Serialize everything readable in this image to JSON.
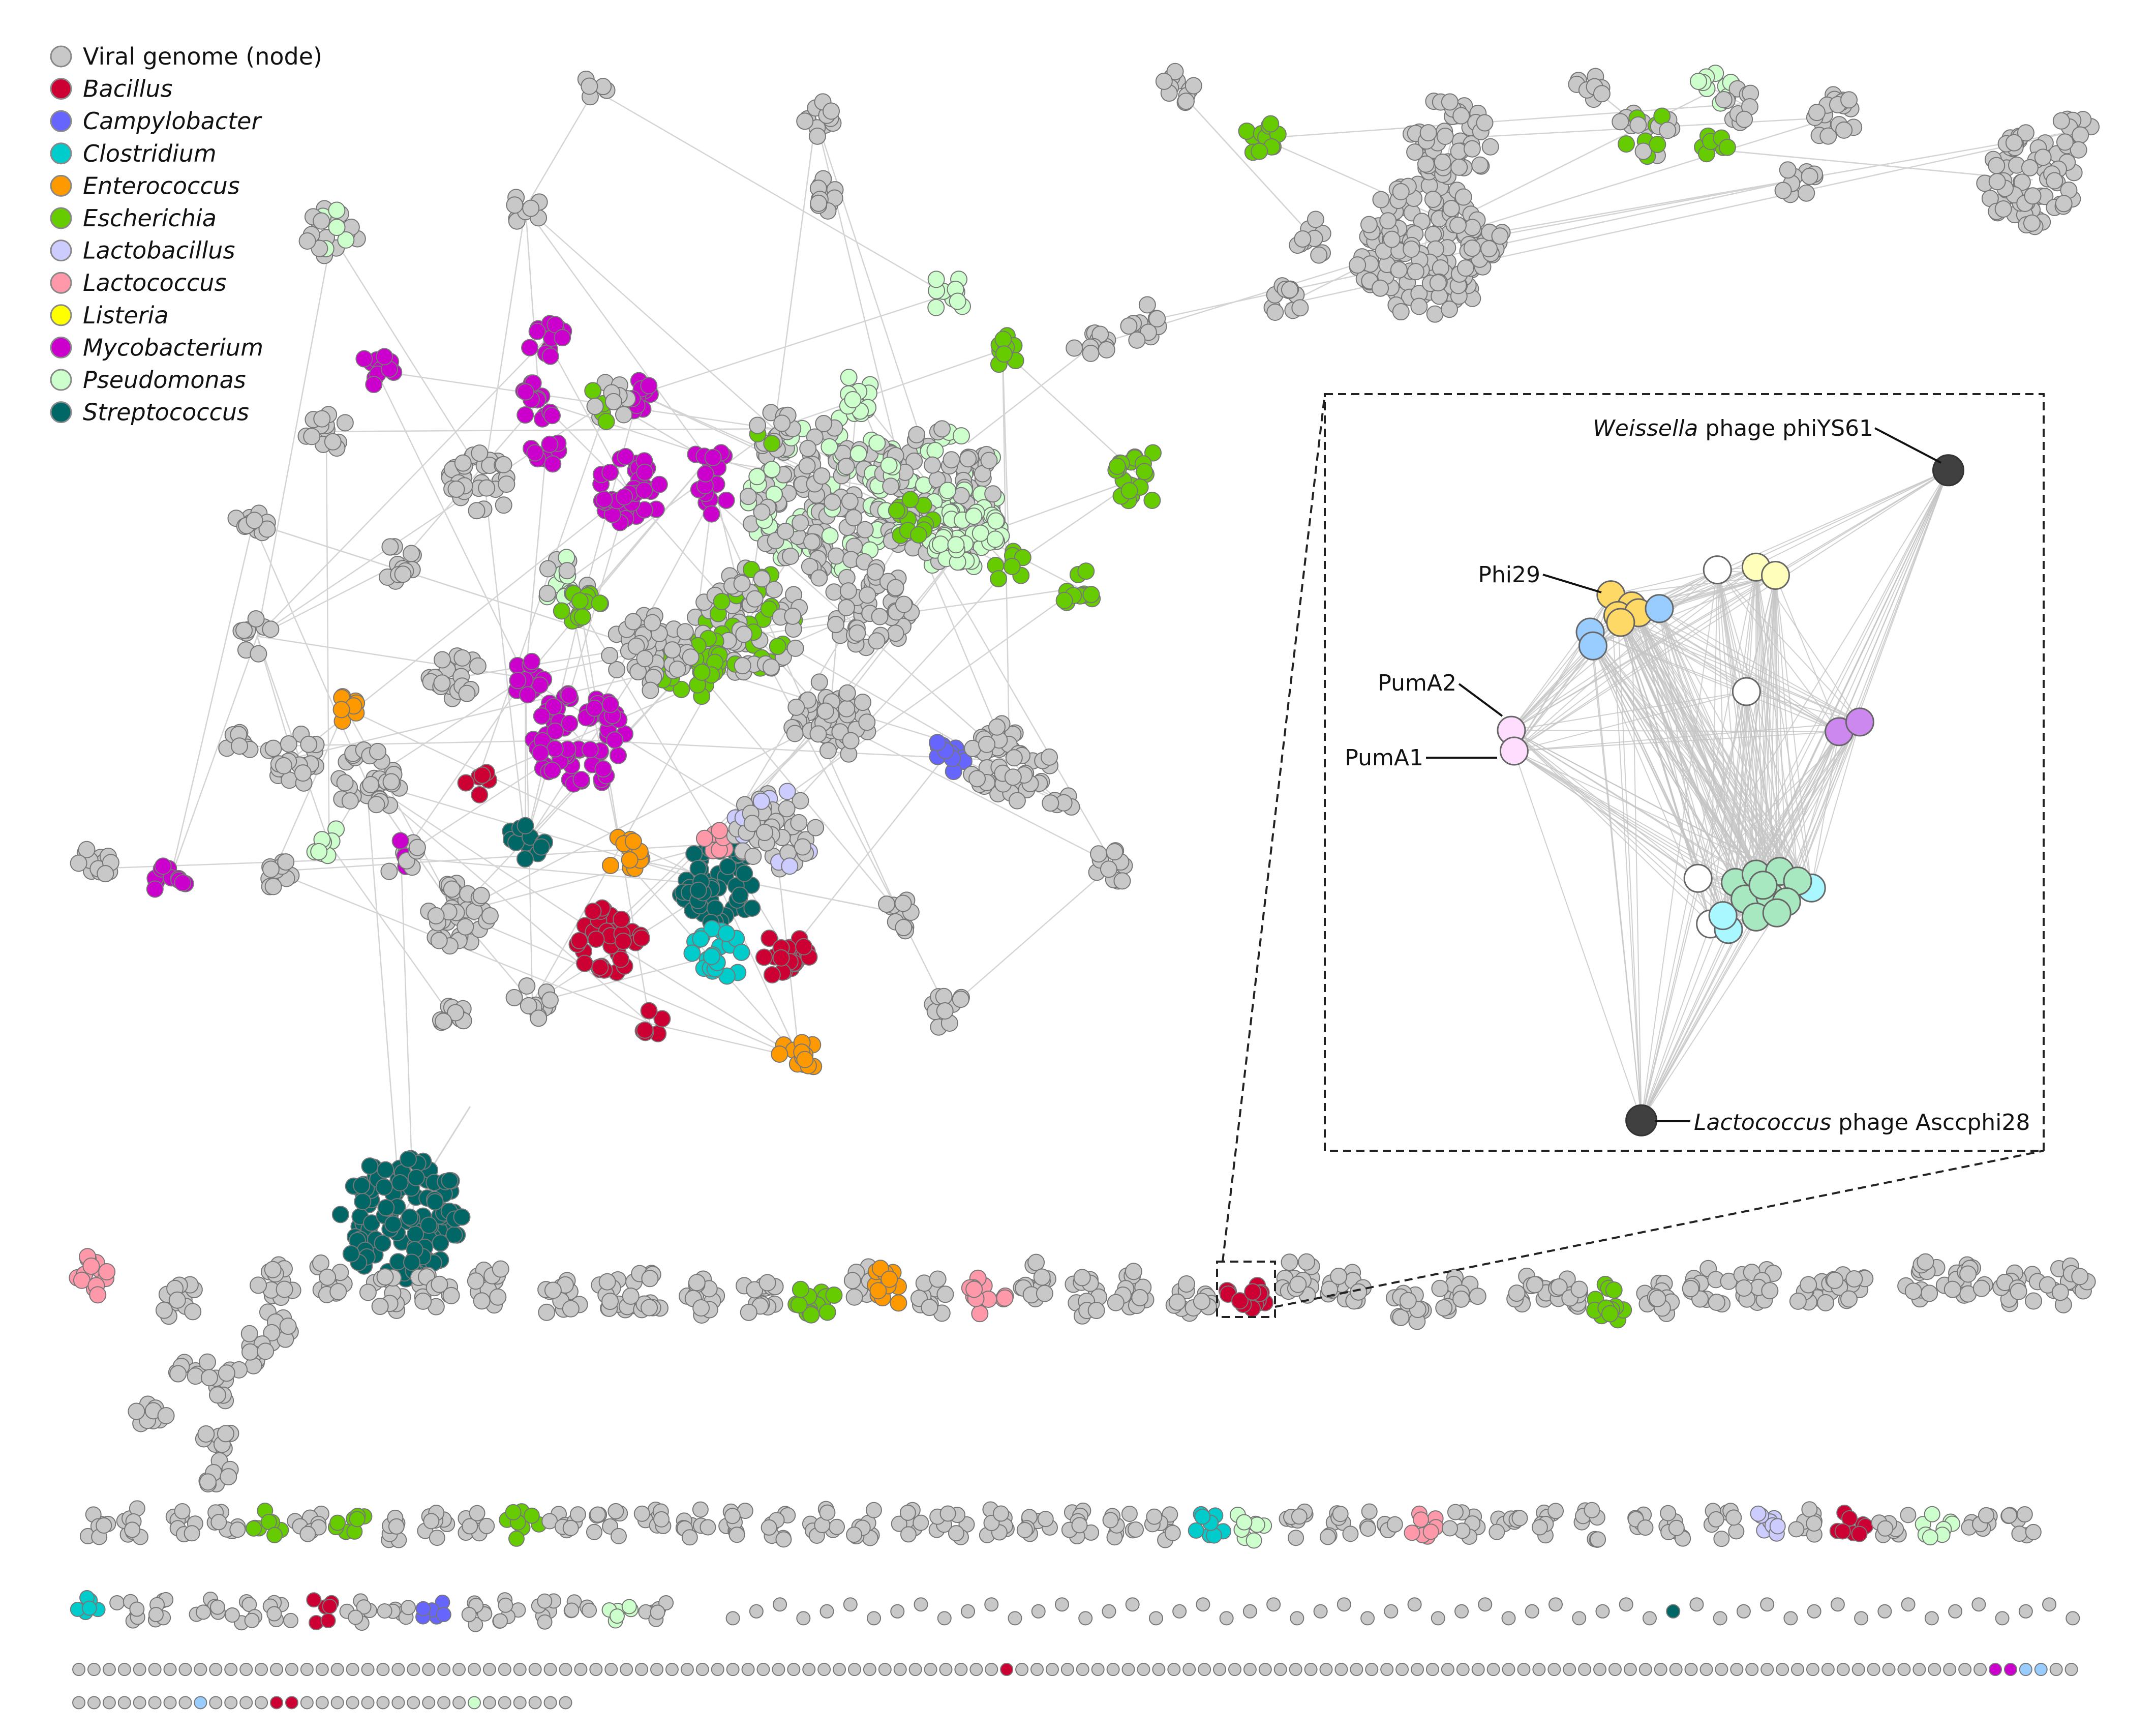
{
  "legend": {
    "items": [
      {
        "label": "Viral genome (node)",
        "color": "#c8c8c8",
        "italic": false
      },
      {
        "label": "Bacillus",
        "color": "#cc0033",
        "italic": true
      },
      {
        "label": "Campylobacter",
        "color": "#6666ff",
        "italic": true
      },
      {
        "label": "Clostridium",
        "color": "#00cccc",
        "italic": true
      },
      {
        "label": "Enterococcus",
        "color": "#ff9900",
        "italic": true
      },
      {
        "label": "Escherichia",
        "color": "#66cc00",
        "italic": true
      },
      {
        "label": "Lactobacillus",
        "color": "#ccccff",
        "italic": true
      },
      {
        "label": "Lactococcus",
        "color": "#ff99aa",
        "italic": true
      },
      {
        "label": "Listeria",
        "color": "#ffff00",
        "italic": true
      },
      {
        "label": "Mycobacterium",
        "color": "#cc00cc",
        "italic": true
      },
      {
        "label": "Pseudomonas",
        "color": "#ccffcc",
        "italic": true
      },
      {
        "label": "Streptococcus",
        "color": "#006666",
        "italic": true
      }
    ]
  },
  "inset": {
    "weissella_genus": "Weissella",
    "weissella_rest": " phage phiYS61",
    "phi29": "Phi29",
    "puma2": "PumA2",
    "puma1": "PumA1",
    "lactococcus_genus": "Lactococcus",
    "lactococcus_rest": " phage Asccphi28"
  },
  "colors": {
    "edge": "#d4d4d4",
    "node_stroke": "#777777",
    "highlight_node": "#404040",
    "unlabeled_blue": "#99ccff"
  }
}
